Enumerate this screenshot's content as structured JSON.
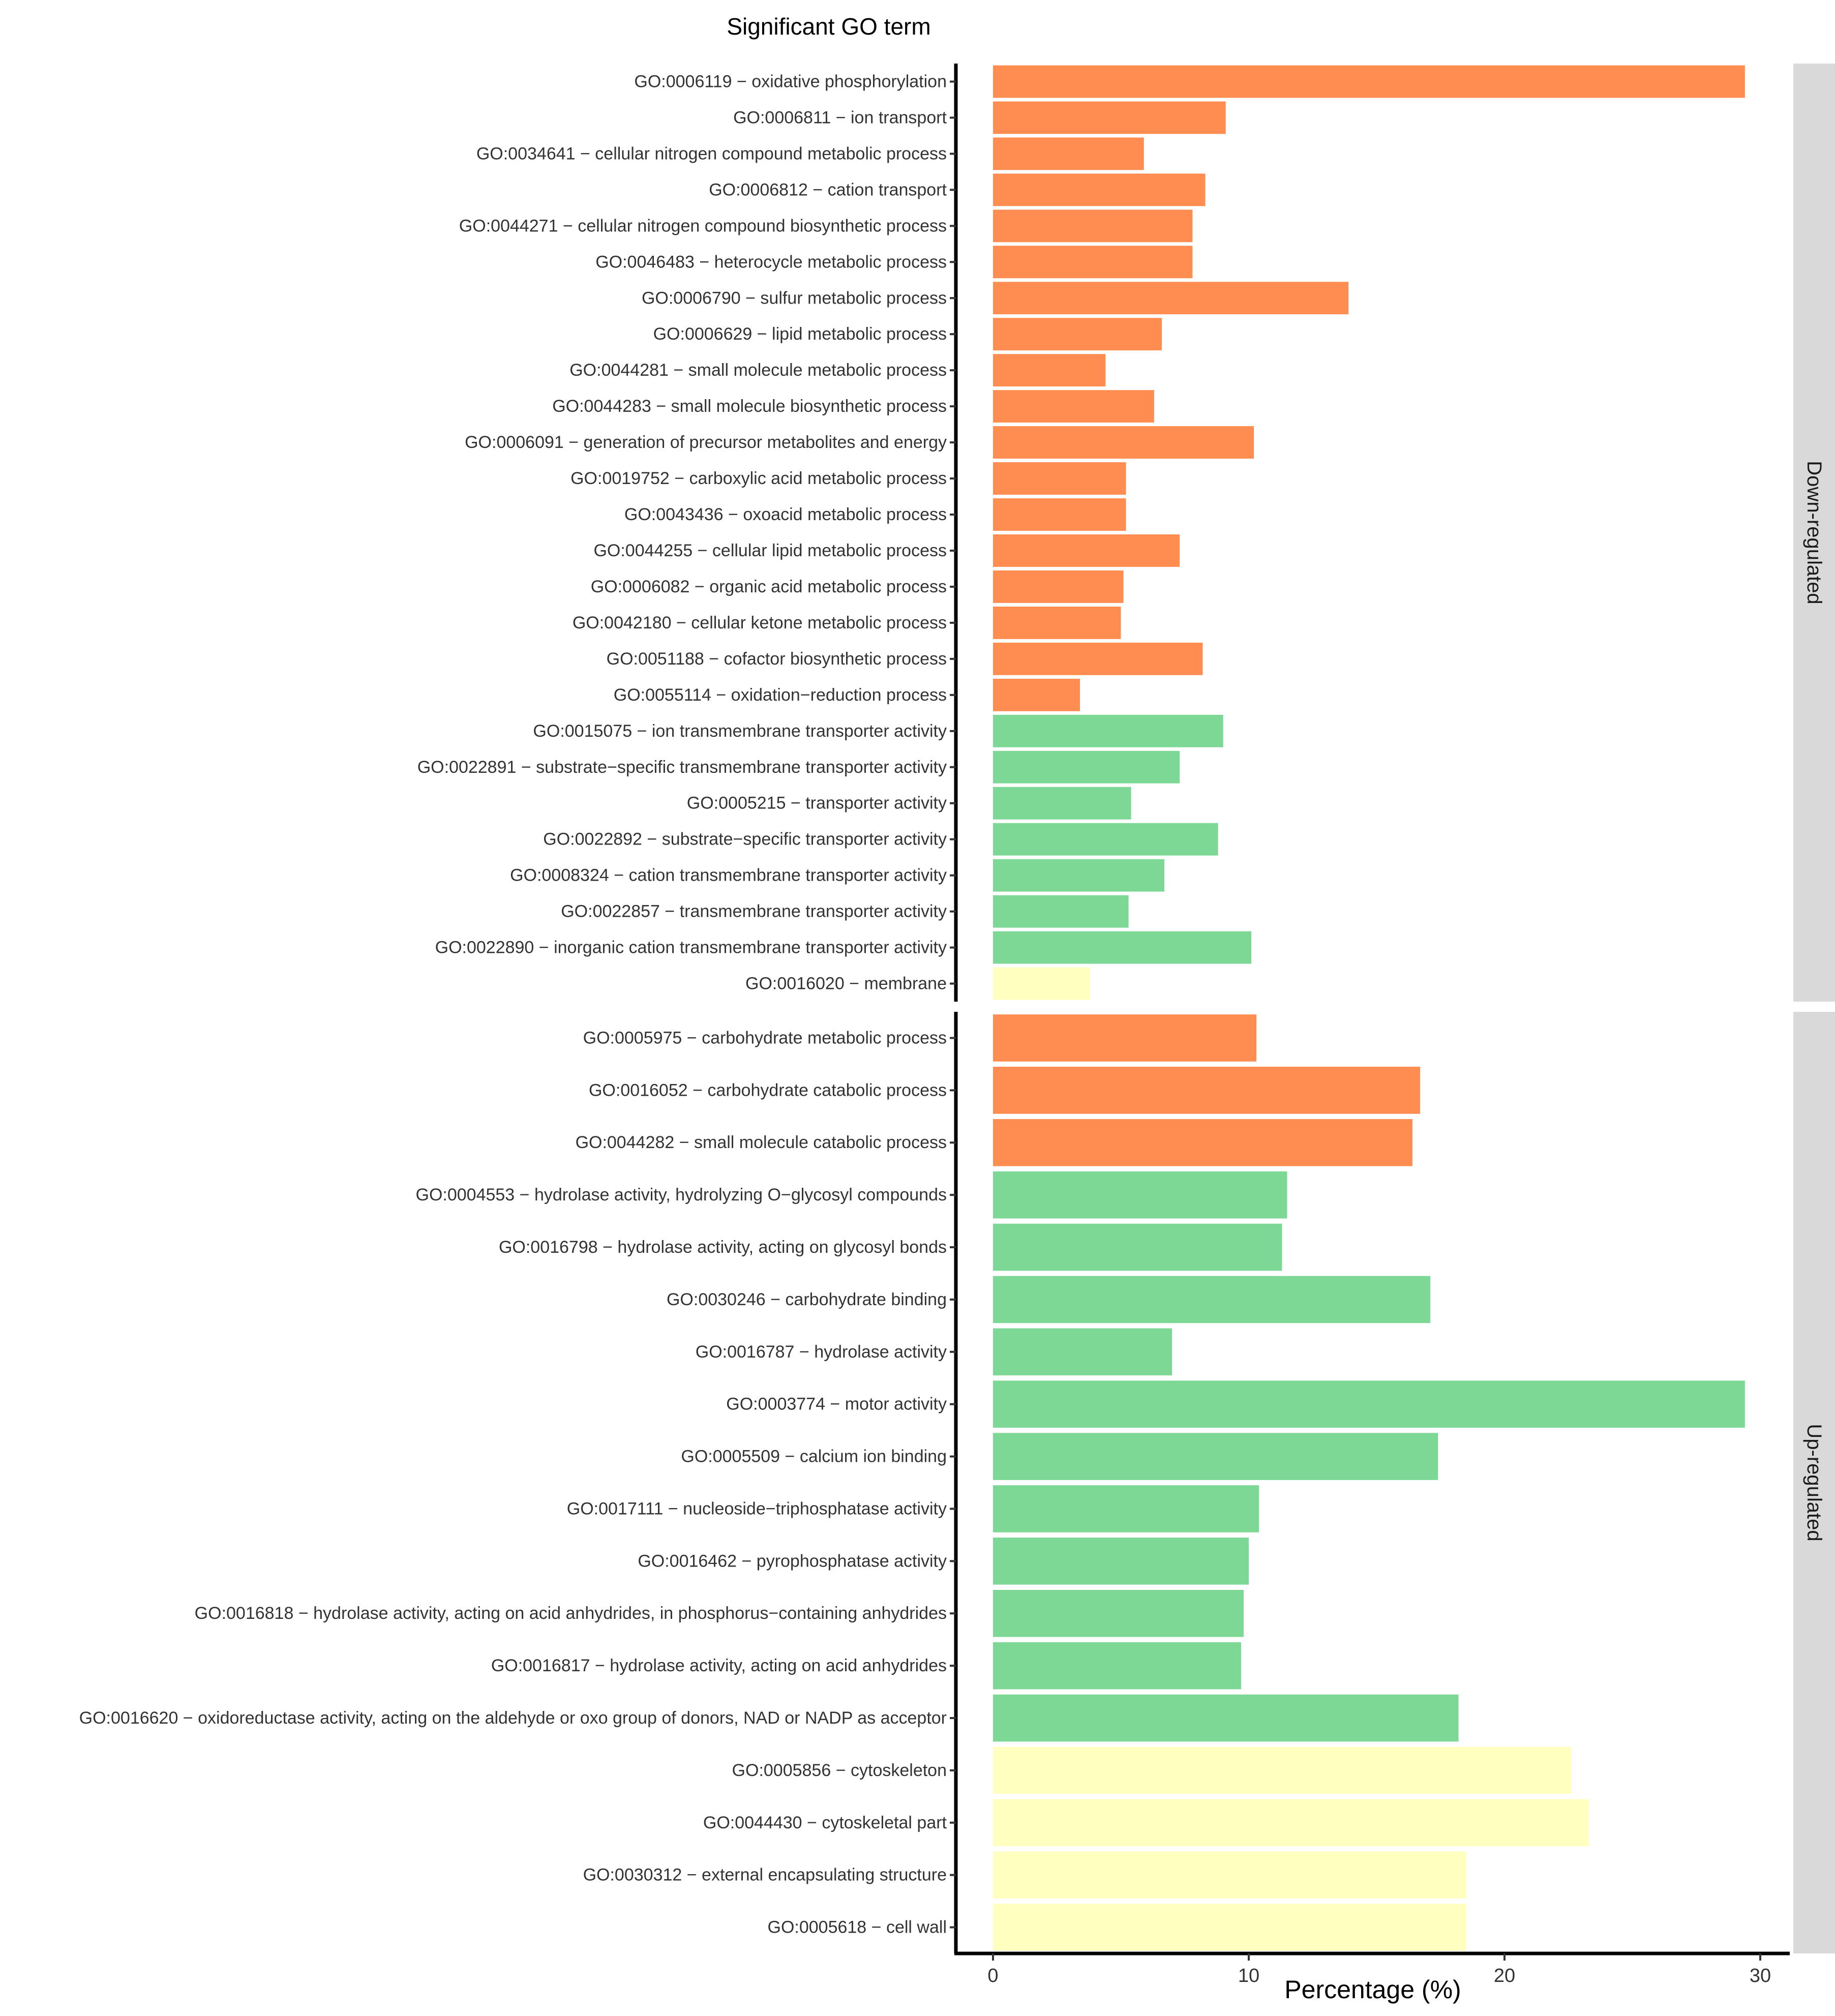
{
  "chart_data": {
    "type": "bar",
    "orientation": "horizontal",
    "title": "Significant GO term",
    "xlabel": "Percentage (%)",
    "ylabel": "",
    "xlim": [
      -1.5,
      31
    ],
    "xticks": [
      0,
      10,
      20,
      30
    ],
    "grid": false,
    "legend": "none",
    "colors": {
      "biological_process": "#FF8C50",
      "molecular_function": "#7DD896",
      "cellular_component": "#FFFFC0",
      "strip_background": "#D9D9D9",
      "axis": "#000000",
      "text": "#333333"
    },
    "panels": [
      {
        "name": "Down-regulated",
        "categories": [
          {
            "label": "GO:0006119 − oxidative phosphorylation",
            "value": 29.4,
            "group": "biological_process"
          },
          {
            "label": "GO:0006811 − ion transport",
            "value": 9.1,
            "group": "biological_process"
          },
          {
            "label": "GO:0034641 − cellular nitrogen compound metabolic process",
            "value": 5.9,
            "group": "biological_process"
          },
          {
            "label": "GO:0006812 − cation transport",
            "value": 8.3,
            "group": "biological_process"
          },
          {
            "label": "GO:0044271 − cellular nitrogen compound biosynthetic process",
            "value": 7.8,
            "group": "biological_process"
          },
          {
            "label": "GO:0046483 − heterocycle metabolic process",
            "value": 7.8,
            "group": "biological_process"
          },
          {
            "label": "GO:0006790 − sulfur metabolic process",
            "value": 13.9,
            "group": "biological_process"
          },
          {
            "label": "GO:0006629 − lipid metabolic process",
            "value": 6.6,
            "group": "biological_process"
          },
          {
            "label": "GO:0044281 − small molecule metabolic process",
            "value": 4.4,
            "group": "biological_process"
          },
          {
            "label": "GO:0044283 − small molecule biosynthetic process",
            "value": 6.3,
            "group": "biological_process"
          },
          {
            "label": "GO:0006091 − generation of precursor metabolites and energy",
            "value": 10.2,
            "group": "biological_process"
          },
          {
            "label": "GO:0019752 − carboxylic acid metabolic process",
            "value": 5.2,
            "group": "biological_process"
          },
          {
            "label": "GO:0043436 − oxoacid metabolic process",
            "value": 5.2,
            "group": "biological_process"
          },
          {
            "label": "GO:0044255 − cellular lipid metabolic process",
            "value": 7.3,
            "group": "biological_process"
          },
          {
            "label": "GO:0006082 − organic acid metabolic process",
            "value": 5.1,
            "group": "biological_process"
          },
          {
            "label": "GO:0042180 −  cellular ketone metabolic process",
            "value": 5.0,
            "group": "biological_process"
          },
          {
            "label": "GO:0051188 − cofactor biosynthetic process",
            "value": 8.2,
            "group": "biological_process"
          },
          {
            "label": "GO:0055114 − oxidation−reduction process",
            "value": 3.4,
            "group": "biological_process"
          },
          {
            "label": "GO:0015075 − ion transmembrane transporter activity",
            "value": 9.0,
            "group": "molecular_function"
          },
          {
            "label": "GO:0022891 − substrate−specific transmembrane transporter activity",
            "value": 7.3,
            "group": "molecular_function"
          },
          {
            "label": "GO:0005215 − transporter activity",
            "value": 5.4,
            "group": "molecular_function"
          },
          {
            "label": "GO:0022892 − substrate−specific transporter activity",
            "value": 8.8,
            "group": "molecular_function"
          },
          {
            "label": "GO:0008324 − cation transmembrane transporter activity",
            "value": 6.7,
            "group": "molecular_function"
          },
          {
            "label": "GO:0022857 − transmembrane transporter activity",
            "value": 5.3,
            "group": "molecular_function"
          },
          {
            "label": "GO:0022890 − inorganic cation transmembrane transporter activity",
            "value": 10.1,
            "group": "molecular_function"
          },
          {
            "label": "GO:0016020 − membrane",
            "value": 3.8,
            "group": "cellular_component"
          }
        ]
      },
      {
        "name": "Up-regulated",
        "categories": [
          {
            "label": "GO:0005975 − carbohydrate metabolic process",
            "value": 10.3,
            "group": "biological_process"
          },
          {
            "label": "GO:0016052 − carbohydrate catabolic process",
            "value": 16.7,
            "group": "biological_process"
          },
          {
            "label": "GO:0044282 − small molecule catabolic process",
            "value": 16.4,
            "group": "biological_process"
          },
          {
            "label": "GO:0004553 − hydrolase activity, hydrolyzing O−glycosyl compounds",
            "value": 11.5,
            "group": "molecular_function"
          },
          {
            "label": "GO:0016798 − hydrolase activity, acting on glycosyl bonds",
            "value": 11.3,
            "group": "molecular_function"
          },
          {
            "label": "GO:0030246 − carbohydrate binding",
            "value": 17.1,
            "group": "molecular_function"
          },
          {
            "label": "GO:0016787 − hydrolase activity",
            "value": 7.0,
            "group": "molecular_function"
          },
          {
            "label": "GO:0003774 − motor activity",
            "value": 29.4,
            "group": "molecular_function"
          },
          {
            "label": "GO:0005509 − calcium ion binding",
            "value": 17.4,
            "group": "molecular_function"
          },
          {
            "label": "GO:0017111 − nucleoside−triphosphatase activity",
            "value": 10.4,
            "group": "molecular_function"
          },
          {
            "label": "GO:0016462 − pyrophosphatase activity",
            "value": 10.0,
            "group": "molecular_function"
          },
          {
            "label": "GO:0016818 − hydrolase activity, acting on acid anhydrides, in phosphorus−containing anhydrides",
            "value": 9.8,
            "group": "molecular_function"
          },
          {
            "label": "GO:0016817 − hydrolase activity, acting on acid anhydrides",
            "value": 9.7,
            "group": "molecular_function"
          },
          {
            "label": "GO:0016620 − oxidoreductase activity, acting on the aldehyde or oxo group of donors, NAD or NADP as acceptor",
            "value": 18.2,
            "group": "molecular_function"
          },
          {
            "label": "GO:0005856 − cytoskeleton",
            "value": 22.6,
            "group": "cellular_component"
          },
          {
            "label": "GO:0044430 − cytoskeletal part",
            "value": 23.3,
            "group": "cellular_component"
          },
          {
            "label": "GO:0030312 − external encapsulating structure",
            "value": 18.5,
            "group": "cellular_component"
          },
          {
            "label": "GO:0005618 − cell wall",
            "value": 18.5,
            "group": "cellular_component"
          }
        ]
      }
    ]
  }
}
